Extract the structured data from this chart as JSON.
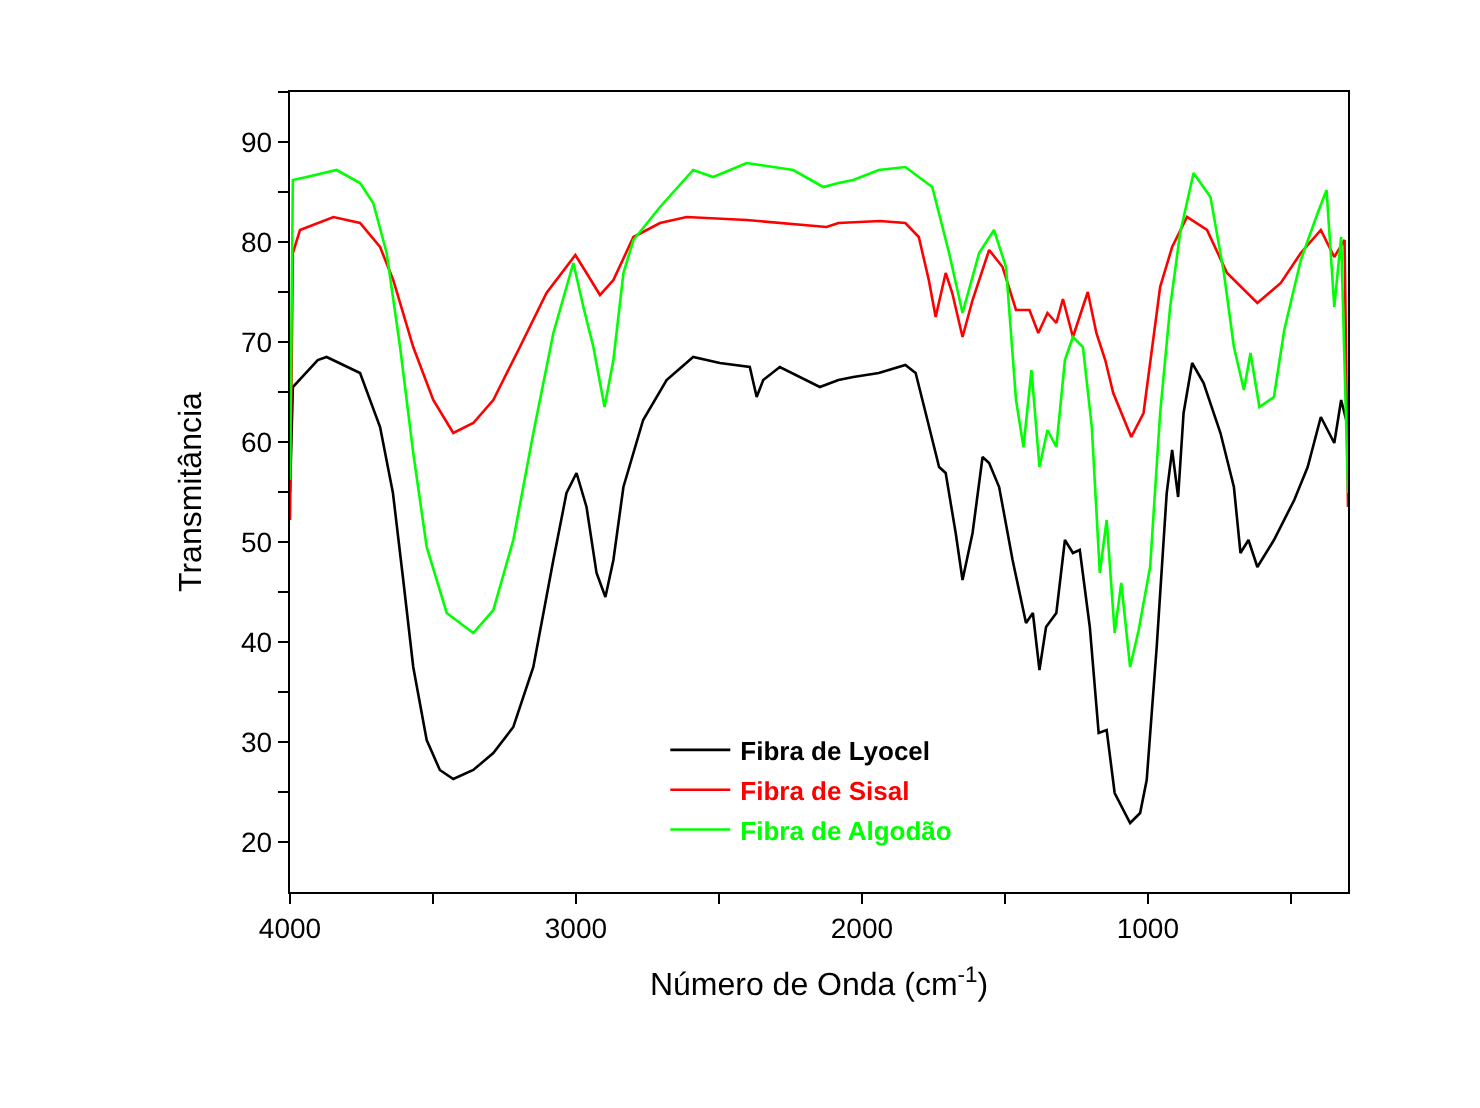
{
  "chart_data": {
    "type": "line",
    "xlabel": "Número de Onda (cm$^{-1}$)",
    "ylabel": "Transmitância",
    "xlim": [
      4000,
      300
    ],
    "ylim": [
      15,
      95
    ],
    "xticks": [
      4000,
      {
        "value": 3500,
        "label": null
      },
      3000,
      {
        "value": 2500,
        "label": null
      },
      2000,
      {
        "value": 1500,
        "label": null
      },
      1000,
      {
        "value": 500,
        "label": null
      }
    ],
    "yticks": [
      20,
      {
        "value": 25,
        "label": null
      },
      30,
      {
        "value": 35,
        "label": null
      },
      40,
      {
        "value": 45,
        "label": null
      },
      50,
      {
        "value": 55,
        "label": null
      },
      60,
      {
        "value": 65,
        "label": null
      },
      70,
      {
        "value": 75,
        "label": null
      },
      80,
      {
        "value": 85,
        "label": null
      },
      90,
      {
        "value": 95,
        "label": null
      }
    ],
    "legend": "bottom",
    "marker": "none",
    "line_style": "solid",
    "series": [
      {
        "name": "Fibra de Lyocel",
        "color": "#000000",
        "x": [
          4000,
          3990,
          3903,
          3872,
          3755,
          3685,
          3640,
          3604,
          3569,
          3522,
          3476,
          3429,
          3359,
          3289,
          3219,
          3149,
          3079,
          3033,
          2998,
          2963,
          2928,
          2897,
          2869,
          2834,
          2765,
          2683,
          2590,
          2497,
          2392,
          2368,
          2345,
          2287,
          2147,
          2082,
          2030,
          1941,
          1848,
          1812,
          1777,
          1730,
          1707,
          1672,
          1648,
          1613,
          1578,
          1555,
          1520,
          1473,
          1426,
          1402,
          1379,
          1356,
          1320,
          1290,
          1262,
          1238,
          1203,
          1172,
          1144,
          1116,
          1062,
          1027,
          1004,
          969,
          934,
          915,
          894,
          875,
          845,
          805,
          746,
          699,
          676,
          648,
          617,
          559,
          488,
          441,
          395,
          348,
          324,
          300
        ],
        "values": [
          55,
          65.5,
          68.2,
          68.5,
          66.9,
          61.5,
          54.9,
          46.2,
          37.5,
          30.2,
          27.2,
          26.3,
          27.2,
          28.9,
          31.5,
          37.5,
          48.2,
          54.9,
          56.9,
          53.5,
          46.9,
          44.5,
          48.2,
          55.5,
          62.2,
          66.2,
          68.5,
          67.9,
          67.5,
          64.5,
          66.2,
          67.5,
          65.5,
          66.2,
          66.5,
          66.9,
          67.7,
          66.9,
          62.9,
          57.5,
          56.9,
          50.9,
          46.2,
          50.9,
          58.5,
          57.9,
          55.5,
          48.2,
          41.9,
          42.9,
          37.2,
          41.5,
          42.9,
          50.2,
          48.9,
          49.2,
          41.5,
          30.9,
          31.2,
          24.9,
          21.9,
          22.9,
          26.2,
          39.5,
          54.9,
          59.2,
          54.5,
          62.9,
          67.9,
          65.9,
          60.9,
          55.5,
          48.9,
          50.2,
          47.5,
          50.2,
          54.2,
          57.5,
          62.5,
          59.9,
          64.2,
          61.5
        ]
      },
      {
        "name": "Fibra de Sisal",
        "color": "#ff0000",
        "x": [
          4000,
          3990,
          3965,
          3848,
          3755,
          3685,
          3639,
          3569,
          3499,
          3429,
          3359,
          3289,
          3196,
          3103,
          3002,
          2963,
          2916,
          2869,
          2799,
          2706,
          2613,
          2403,
          2124,
          2082,
          1937,
          1848,
          1801,
          1766,
          1742,
          1707,
          1684,
          1648,
          1613,
          1555,
          1508,
          1461,
          1414,
          1383,
          1351,
          1320,
          1297,
          1262,
          1210,
          1180,
          1149,
          1121,
          1058,
          1015,
          957,
          915,
          863,
          793,
          723,
          617,
          535,
          465,
          395,
          348,
          312,
          300
        ],
        "values": [
          52.2,
          78.9,
          81.2,
          82.5,
          81.9,
          79.5,
          76.2,
          69.5,
          64.2,
          60.9,
          61.9,
          64.2,
          69.5,
          74.9,
          78.7,
          76.9,
          74.7,
          76.2,
          80.5,
          81.9,
          82.5,
          82.2,
          81.5,
          81.9,
          82.1,
          81.9,
          80.5,
          76.2,
          72.5,
          76.9,
          74.9,
          70.5,
          74.2,
          79.2,
          77.5,
          73.2,
          73.2,
          70.9,
          72.9,
          71.9,
          74.3,
          70.5,
          75.0,
          70.9,
          68.2,
          64.9,
          60.5,
          62.9,
          75.5,
          79.5,
          82.5,
          81.2,
          76.9,
          73.9,
          75.9,
          78.9,
          81.2,
          78.5,
          80.2,
          53.5
        ]
      },
      {
        "name": "Fibra de Algodão",
        "color": "#00ff00",
        "x": [
          4000,
          3990,
          3942,
          3837,
          3755,
          3709,
          3662,
          3615,
          3569,
          3522,
          3452,
          3359,
          3289,
          3219,
          3149,
          3079,
          3009,
          2974,
          2939,
          2900,
          2869,
          2834,
          2799,
          2706,
          2590,
          2520,
          2403,
          2240,
          2135,
          2082,
          2030,
          1941,
          1848,
          1754,
          1695,
          1648,
          1590,
          1538,
          1496,
          1461,
          1435,
          1407,
          1379,
          1351,
          1320,
          1290,
          1262,
          1227,
          1196,
          1168,
          1144,
          1116,
          1093,
          1062,
          1032,
          992,
          957,
          922,
          887,
          840,
          781,
          734,
          699,
          664,
          641,
          610,
          559,
          523,
          465,
          406,
          375,
          348,
          324,
          300
        ],
        "values": [
          56.2,
          86.2,
          86.5,
          87.2,
          85.9,
          83.9,
          78.9,
          69.5,
          58.9,
          49.5,
          42.9,
          40.9,
          43.2,
          50.2,
          60.9,
          70.9,
          77.9,
          73.5,
          69.5,
          63.5,
          68.2,
          76.9,
          80.2,
          83.5,
          87.2,
          86.5,
          87.9,
          87.2,
          85.5,
          85.9,
          86.2,
          87.2,
          87.5,
          85.5,
          78.9,
          72.9,
          78.9,
          81.2,
          77.5,
          64.2,
          59.5,
          67.2,
          57.5,
          61.2,
          59.5,
          68.2,
          70.5,
          69.5,
          61.5,
          46.9,
          52.2,
          40.9,
          45.9,
          37.5,
          41.2,
          47.5,
          62.9,
          73.5,
          80.9,
          86.9,
          84.5,
          76.9,
          69.5,
          65.2,
          68.9,
          63.5,
          64.5,
          71.2,
          78.2,
          82.9,
          85.2,
          73.5,
          80.5,
          54.9
        ]
      }
    ]
  }
}
